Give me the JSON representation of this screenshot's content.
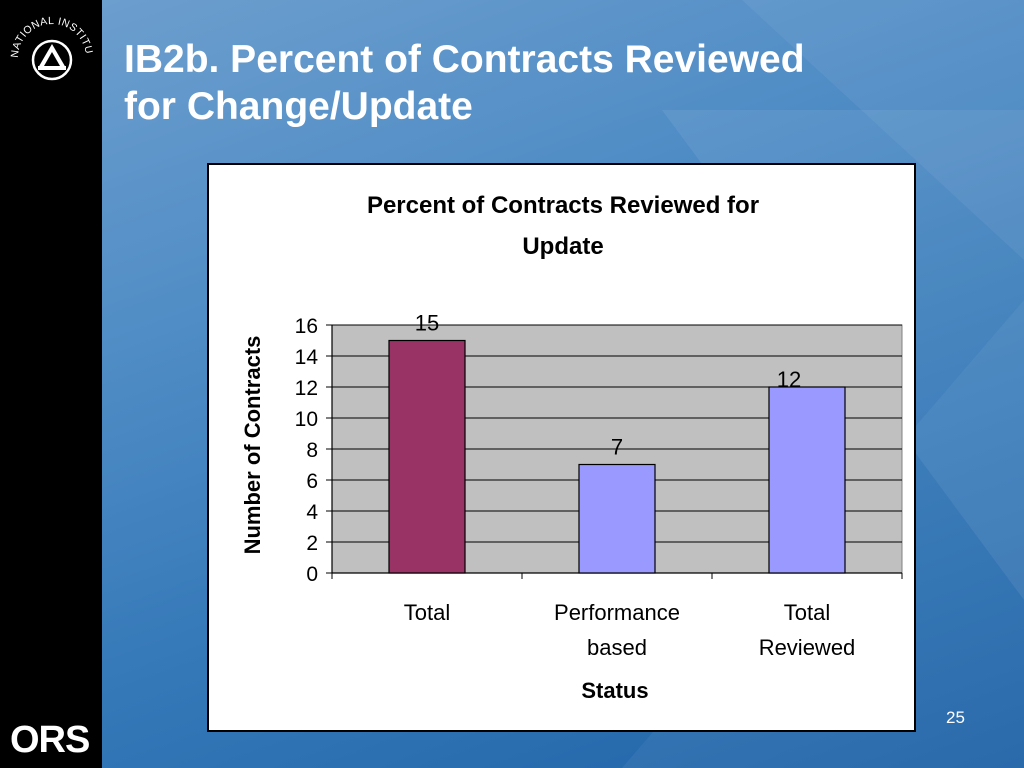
{
  "slide": {
    "title_line1": "IB2b. Percent of Contracts Reviewed",
    "title_line2": "for Change/Update",
    "page_number": "25",
    "logo_seal_text": "NATIONAL INSTITUTES OF HEALTH",
    "logo_bottom_text": "ORS"
  },
  "chart_data": {
    "type": "bar",
    "title_line1": "Percent of Contracts Reviewed for",
    "title_line2": "Update",
    "xlabel": "Status",
    "ylabel": "Number of Contracts",
    "categories": [
      [
        "Total"
      ],
      [
        "Performance",
        "based"
      ],
      [
        "Total",
        "Reviewed"
      ]
    ],
    "values": [
      15,
      7,
      12
    ],
    "bar_colors": [
      "#993366",
      "#9999ff",
      "#9999ff"
    ],
    "ylim": [
      0,
      16
    ],
    "yticks": [
      0,
      2,
      4,
      6,
      8,
      10,
      12,
      14,
      16
    ],
    "grid": true,
    "plot_background": "#c0c0c0",
    "legend": "none"
  }
}
